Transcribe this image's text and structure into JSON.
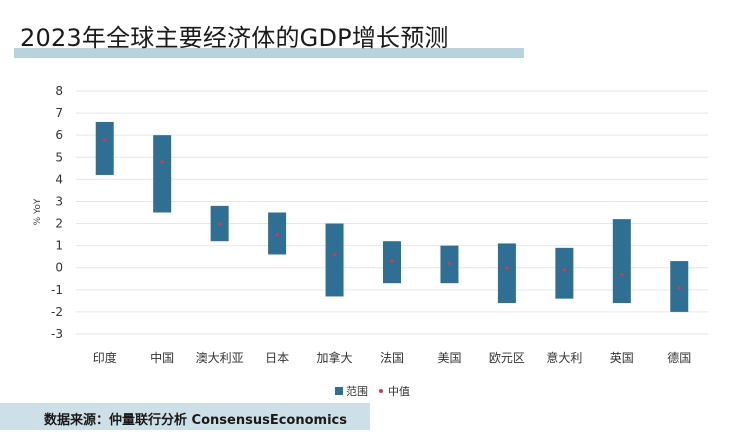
{
  "title": "2023年全球主要经济体的GDP增长预测",
  "footer": {
    "label": "数据来源：仲量联行分析",
    "source": "ConsensusEconomics"
  },
  "colors": {
    "range": "#2f6f93",
    "median": "#e0344a",
    "grid": "#e6e6e6",
    "title_bar": "#b9d3de",
    "footer_bar": "#cde0e8"
  },
  "chart_data": {
    "type": "bar",
    "ylabel": "% YoY",
    "ylim": [
      -3,
      8
    ],
    "yticks": [
      8,
      7,
      6,
      5,
      4,
      3,
      2,
      1,
      0,
      -1,
      -2,
      -3
    ],
    "grid": true,
    "legend_position": "bottom",
    "categories": [
      "印度",
      "中国",
      "澳大利亚",
      "日本",
      "加拿大",
      "法国",
      "美国",
      "欧元区",
      "意大利",
      "英国",
      "德国"
    ],
    "series": [
      {
        "name": "范围",
        "low": [
          4.2,
          2.5,
          1.2,
          0.6,
          -1.3,
          -0.7,
          -0.7,
          -1.6,
          -1.4,
          -1.6,
          -2.0
        ],
        "high": [
          6.6,
          6.0,
          2.8,
          2.5,
          2.0,
          1.2,
          1.0,
          1.1,
          0.9,
          2.2,
          0.3
        ]
      },
      {
        "name": "中值",
        "values": [
          5.8,
          4.8,
          2.0,
          1.5,
          0.6,
          0.3,
          0.2,
          0.0,
          -0.1,
          -0.3,
          -0.9
        ]
      }
    ]
  }
}
